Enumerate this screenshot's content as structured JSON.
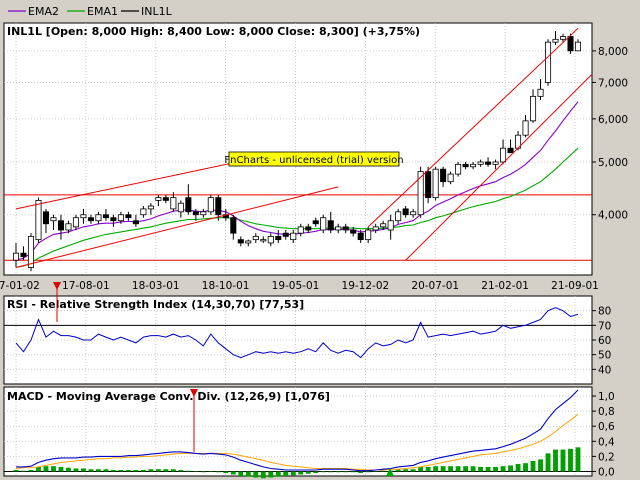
{
  "legend": [
    {
      "label": "EMA2",
      "color": "#8800cc"
    },
    {
      "label": "EMA1",
      "color": "#00aa00"
    },
    {
      "label": "INL1L",
      "color": "#000000"
    }
  ],
  "price_header": "INL1L [Open: 8,000  High: 8,400  Low: 8,000  Close: 8,300] (+3,75%)",
  "watermark": "FnCharts - unlicensed (trial) version",
  "rsi_header": "RSI - Relative Strength Index (14,30,70) [77,53]",
  "macd_header": "MACD - Moving Average Conv. Div. (12,26,9) [1,076]",
  "x_tick_labels": [
    "17-01-02",
    "17-08-01",
    "18-03-01",
    "18-10-01",
    "19-05-01",
    "19-12-02",
    "20-07-01",
    "21-02-01",
    "21-09-01"
  ],
  "colors": {
    "candle_up": "#ffffff",
    "candle_down": "#000000",
    "ema2": "#8800cc",
    "ema1": "#00aa00",
    "trendline": "#ee0000",
    "rsi_line": "#0000cc",
    "macd_line": "#0000cc",
    "signal_line": "#ffa500",
    "histogram": "#00a000",
    "arrow_down": "#dd0000",
    "arrow_up": "#00aa00"
  },
  "chart_data": [
    {
      "type": "candlestick",
      "scale": "log",
      "ylim": [
        3.1,
        9.0
      ],
      "yticks": [
        {
          "v": 8.0,
          "label": "8,000"
        },
        {
          "v": 7.0,
          "label": "7,000"
        },
        {
          "v": 6.0,
          "label": "6,000"
        },
        {
          "v": 5.0,
          "label": "5,000"
        },
        {
          "v": 4.0,
          "label": "4,000"
        }
      ],
      "candles": [
        {
          "o": 3.3,
          "h": 3.55,
          "l": 3.2,
          "c": 3.4
        },
        {
          "o": 3.4,
          "h": 3.5,
          "l": 3.3,
          "c": 3.35
        },
        {
          "o": 3.2,
          "h": 3.7,
          "l": 3.15,
          "c": 3.65
        },
        {
          "o": 3.6,
          "h": 4.3,
          "l": 3.55,
          "c": 4.25
        },
        {
          "o": 4.05,
          "h": 4.1,
          "l": 3.7,
          "c": 3.85
        },
        {
          "o": 3.9,
          "h": 4.0,
          "l": 3.75,
          "c": 3.95
        },
        {
          "o": 3.9,
          "h": 4.0,
          "l": 3.6,
          "c": 3.75
        },
        {
          "o": 3.75,
          "h": 3.9,
          "l": 3.7,
          "c": 3.85
        },
        {
          "o": 3.8,
          "h": 4.0,
          "l": 3.75,
          "c": 3.95
        },
        {
          "o": 3.95,
          "h": 4.1,
          "l": 3.85,
          "c": 4.0
        },
        {
          "o": 3.95,
          "h": 4.0,
          "l": 3.85,
          "c": 3.9
        },
        {
          "o": 3.9,
          "h": 4.05,
          "l": 3.85,
          "c": 4.0
        },
        {
          "o": 4.0,
          "h": 4.1,
          "l": 3.9,
          "c": 3.95
        },
        {
          "o": 3.95,
          "h": 4.0,
          "l": 3.8,
          "c": 3.9
        },
        {
          "o": 3.9,
          "h": 4.05,
          "l": 3.85,
          "c": 4.0
        },
        {
          "o": 4.0,
          "h": 4.05,
          "l": 3.9,
          "c": 3.95
        },
        {
          "o": 3.9,
          "h": 4.0,
          "l": 3.8,
          "c": 3.85
        },
        {
          "o": 4.0,
          "h": 4.15,
          "l": 3.95,
          "c": 4.1
        },
        {
          "o": 4.1,
          "h": 4.2,
          "l": 4.0,
          "c": 4.15
        },
        {
          "o": 4.25,
          "h": 4.35,
          "l": 4.15,
          "c": 4.3
        },
        {
          "o": 4.3,
          "h": 4.35,
          "l": 4.2,
          "c": 4.25
        },
        {
          "o": 4.1,
          "h": 4.4,
          "l": 4.05,
          "c": 4.3
        },
        {
          "o": 4.05,
          "h": 4.25,
          "l": 3.95,
          "c": 4.2
        },
        {
          "o": 4.3,
          "h": 4.55,
          "l": 4.0,
          "c": 4.05
        },
        {
          "o": 4.05,
          "h": 4.1,
          "l": 3.9,
          "c": 4.0
        },
        {
          "o": 4.0,
          "h": 4.1,
          "l": 3.95,
          "c": 4.05
        },
        {
          "o": 4.05,
          "h": 4.35,
          "l": 4.0,
          "c": 4.3
        },
        {
          "o": 4.3,
          "h": 4.35,
          "l": 3.9,
          "c": 4.0
        },
        {
          "o": 4.0,
          "h": 4.1,
          "l": 3.9,
          "c": 3.95
        },
        {
          "o": 3.95,
          "h": 4.0,
          "l": 3.6,
          "c": 3.7
        },
        {
          "o": 3.6,
          "h": 3.65,
          "l": 3.5,
          "c": 3.55
        },
        {
          "o": 3.55,
          "h": 3.6,
          "l": 3.5,
          "c": 3.58
        },
        {
          "o": 3.6,
          "h": 3.7,
          "l": 3.55,
          "c": 3.65
        },
        {
          "o": 3.58,
          "h": 3.65,
          "l": 3.55,
          "c": 3.6
        },
        {
          "o": 3.55,
          "h": 3.7,
          "l": 3.5,
          "c": 3.65
        },
        {
          "o": 3.65,
          "h": 3.75,
          "l": 3.55,
          "c": 3.6
        },
        {
          "o": 3.7,
          "h": 3.75,
          "l": 3.6,
          "c": 3.65
        },
        {
          "o": 3.6,
          "h": 3.75,
          "l": 3.55,
          "c": 3.7
        },
        {
          "o": 3.7,
          "h": 3.85,
          "l": 3.65,
          "c": 3.8
        },
        {
          "o": 3.8,
          "h": 3.85,
          "l": 3.7,
          "c": 3.75
        },
        {
          "o": 3.9,
          "h": 3.95,
          "l": 3.8,
          "c": 3.85
        },
        {
          "o": 3.75,
          "h": 4.0,
          "l": 3.7,
          "c": 3.95
        },
        {
          "o": 3.9,
          "h": 4.05,
          "l": 3.7,
          "c": 3.75
        },
        {
          "o": 3.75,
          "h": 3.85,
          "l": 3.7,
          "c": 3.8
        },
        {
          "o": 3.8,
          "h": 3.85,
          "l": 3.7,
          "c": 3.75
        },
        {
          "o": 3.75,
          "h": 3.8,
          "l": 3.65,
          "c": 3.7
        },
        {
          "o": 3.7,
          "h": 3.75,
          "l": 3.55,
          "c": 3.6
        },
        {
          "o": 3.6,
          "h": 3.8,
          "l": 3.55,
          "c": 3.75
        },
        {
          "o": 3.75,
          "h": 3.85,
          "l": 3.7,
          "c": 3.8
        },
        {
          "o": 3.8,
          "h": 3.9,
          "l": 3.75,
          "c": 3.85
        },
        {
          "o": 3.75,
          "h": 4.0,
          "l": 3.6,
          "c": 3.9
        },
        {
          "o": 3.9,
          "h": 4.1,
          "l": 3.85,
          "c": 4.05
        },
        {
          "o": 4.1,
          "h": 4.15,
          "l": 3.95,
          "c": 4.0
        },
        {
          "o": 4.0,
          "h": 4.1,
          "l": 3.95,
          "c": 4.05
        },
        {
          "o": 4.0,
          "h": 4.9,
          "l": 3.95,
          "c": 4.8
        },
        {
          "o": 4.8,
          "h": 4.9,
          "l": 4.2,
          "c": 4.3
        },
        {
          "o": 4.3,
          "h": 4.9,
          "l": 4.25,
          "c": 4.85
        },
        {
          "o": 4.85,
          "h": 4.9,
          "l": 4.5,
          "c": 4.6
        },
        {
          "o": 4.6,
          "h": 4.8,
          "l": 4.55,
          "c": 4.75
        },
        {
          "o": 4.75,
          "h": 5.0,
          "l": 4.7,
          "c": 4.95
        },
        {
          "o": 4.95,
          "h": 5.0,
          "l": 4.85,
          "c": 4.9
        },
        {
          "o": 4.9,
          "h": 5.0,
          "l": 4.85,
          "c": 4.95
        },
        {
          "o": 4.95,
          "h": 5.05,
          "l": 4.9,
          "c": 5.0
        },
        {
          "o": 5.0,
          "h": 5.1,
          "l": 4.9,
          "c": 4.95
        },
        {
          "o": 4.95,
          "h": 5.05,
          "l": 4.85,
          "c": 5.0
        },
        {
          "o": 5.0,
          "h": 5.5,
          "l": 4.95,
          "c": 5.3
        },
        {
          "o": 5.3,
          "h": 5.5,
          "l": 5.2,
          "c": 5.2
        },
        {
          "o": 5.3,
          "h": 5.7,
          "l": 5.25,
          "c": 5.6
        },
        {
          "o": 5.6,
          "h": 6.1,
          "l": 5.55,
          "c": 5.95
        },
        {
          "o": 5.95,
          "h": 6.8,
          "l": 5.9,
          "c": 6.6
        },
        {
          "o": 6.6,
          "h": 7.1,
          "l": 6.5,
          "c": 6.8
        },
        {
          "o": 7.0,
          "h": 8.4,
          "l": 6.9,
          "c": 8.3
        },
        {
          "o": 8.3,
          "h": 8.7,
          "l": 8.2,
          "c": 8.4
        },
        {
          "o": 8.4,
          "h": 8.6,
          "l": 8.3,
          "c": 8.5
        },
        {
          "o": 8.5,
          "h": 8.6,
          "l": 7.9,
          "c": 8.0
        },
        {
          "o": 8.0,
          "h": 8.4,
          "l": 8.0,
          "c": 8.3
        }
      ],
      "ema2": [
        3.3,
        3.33,
        3.4,
        3.55,
        3.62,
        3.68,
        3.7,
        3.72,
        3.76,
        3.8,
        3.82,
        3.85,
        3.86,
        3.86,
        3.88,
        3.89,
        3.88,
        3.9,
        3.93,
        3.98,
        4.02,
        4.06,
        4.08,
        4.08,
        4.06,
        4.05,
        4.08,
        4.07,
        4.05,
        3.98,
        3.89,
        3.82,
        3.77,
        3.73,
        3.71,
        3.69,
        3.68,
        3.68,
        3.7,
        3.71,
        3.73,
        3.76,
        3.76,
        3.76,
        3.76,
        3.75,
        3.72,
        3.73,
        3.74,
        3.76,
        3.79,
        3.84,
        3.87,
        3.9,
        4.0,
        4.06,
        4.16,
        4.22,
        4.28,
        4.35,
        4.41,
        4.47,
        4.52,
        4.56,
        4.6,
        4.68,
        4.75,
        4.84,
        4.95,
        5.1,
        5.25,
        5.48,
        5.7,
        5.95,
        6.2,
        6.45
      ],
      "ema1": [
        3.2,
        3.22,
        3.26,
        3.33,
        3.38,
        3.43,
        3.47,
        3.51,
        3.55,
        3.59,
        3.62,
        3.65,
        3.68,
        3.7,
        3.72,
        3.74,
        3.76,
        3.78,
        3.8,
        3.83,
        3.86,
        3.88,
        3.9,
        3.92,
        3.92,
        3.93,
        3.94,
        3.95,
        3.95,
        3.94,
        3.91,
        3.88,
        3.85,
        3.83,
        3.81,
        3.79,
        3.78,
        3.77,
        3.77,
        3.77,
        3.77,
        3.78,
        3.78,
        3.78,
        3.78,
        3.78,
        3.77,
        3.77,
        3.77,
        3.78,
        3.79,
        3.8,
        3.82,
        3.83,
        3.87,
        3.9,
        3.95,
        3.98,
        4.02,
        4.06,
        4.1,
        4.14,
        4.17,
        4.2,
        4.23,
        4.28,
        4.32,
        4.38,
        4.44,
        4.52,
        4.6,
        4.72,
        4.85,
        5.0,
        5.15,
        5.3
      ],
      "hlines": [
        4.35,
        3.3
      ],
      "trendlines": [
        {
          "a": 0,
          "va": 4.1,
          "b": 31,
          "vb": 5.05
        },
        {
          "a": 0,
          "va": 3.2,
          "b": 43,
          "vb": 4.5
        },
        {
          "a": 47,
          "va": 3.8,
          "b": 75,
          "vb": 8.8
        },
        {
          "a": 52,
          "va": 3.3,
          "b": 80,
          "vb": 8.0
        }
      ]
    },
    {
      "type": "line",
      "name": "RSI",
      "ylim": [
        30,
        90
      ],
      "yticks": [
        80,
        70,
        60,
        50,
        40
      ],
      "hlines": [
        70,
        30
      ],
      "values": [
        58,
        52,
        60,
        74,
        62,
        66,
        63,
        63,
        62,
        60,
        60,
        64,
        62,
        60,
        62,
        60,
        58,
        62,
        63,
        63,
        62,
        64,
        62,
        63,
        60,
        56,
        64,
        58,
        54,
        50,
        48,
        50,
        52,
        51,
        52,
        51,
        52,
        51,
        52,
        54,
        52,
        58,
        53,
        51,
        53,
        52,
        48,
        54,
        58,
        56,
        57,
        60,
        58,
        60,
        72,
        62,
        63,
        64,
        63,
        64,
        65,
        66,
        64,
        65,
        66,
        70,
        68,
        69,
        70,
        72,
        74,
        80,
        82,
        80,
        76,
        77.53
      ]
    },
    {
      "type": "bar+line",
      "name": "MACD",
      "ylim": [
        -0.06,
        1.12
      ],
      "yticks": [
        {
          "v": 1.0,
          "label": "1,0"
        },
        {
          "v": 0.8,
          "label": "0,8"
        },
        {
          "v": 0.6,
          "label": "0,6"
        },
        {
          "v": 0.4,
          "label": "0,4"
        },
        {
          "v": 0.2,
          "label": "0,2"
        },
        {
          "v": 0.0,
          "label": "0,0"
        }
      ],
      "macd": [
        0.06,
        0.06,
        0.07,
        0.12,
        0.15,
        0.17,
        0.18,
        0.18,
        0.18,
        0.19,
        0.19,
        0.2,
        0.2,
        0.2,
        0.2,
        0.21,
        0.21,
        0.22,
        0.23,
        0.24,
        0.25,
        0.26,
        0.26,
        0.25,
        0.24,
        0.23,
        0.24,
        0.23,
        0.22,
        0.19,
        0.15,
        0.12,
        0.09,
        0.06,
        0.04,
        0.03,
        0.02,
        0.02,
        0.02,
        0.02,
        0.02,
        0.03,
        0.03,
        0.03,
        0.03,
        0.02,
        0.01,
        0.01,
        0.02,
        0.03,
        0.04,
        0.06,
        0.07,
        0.08,
        0.12,
        0.14,
        0.17,
        0.19,
        0.21,
        0.23,
        0.25,
        0.27,
        0.28,
        0.29,
        0.3,
        0.33,
        0.36,
        0.4,
        0.44,
        0.5,
        0.56,
        0.7,
        0.82,
        0.9,
        0.98,
        1.08
      ],
      "signal": [
        0.04,
        0.05,
        0.05,
        0.06,
        0.08,
        0.1,
        0.12,
        0.13,
        0.14,
        0.15,
        0.16,
        0.17,
        0.17,
        0.18,
        0.18,
        0.19,
        0.19,
        0.2,
        0.2,
        0.21,
        0.22,
        0.23,
        0.24,
        0.24,
        0.24,
        0.24,
        0.24,
        0.24,
        0.24,
        0.23,
        0.21,
        0.19,
        0.17,
        0.15,
        0.12,
        0.1,
        0.08,
        0.07,
        0.06,
        0.05,
        0.04,
        0.04,
        0.04,
        0.04,
        0.04,
        0.03,
        0.03,
        0.02,
        0.02,
        0.02,
        0.03,
        0.03,
        0.04,
        0.05,
        0.06,
        0.08,
        0.1,
        0.12,
        0.14,
        0.16,
        0.18,
        0.2,
        0.22,
        0.23,
        0.24,
        0.26,
        0.28,
        0.3,
        0.33,
        0.36,
        0.4,
        0.46,
        0.53,
        0.61,
        0.68,
        0.76
      ],
      "histogram": [
        0.02,
        0.01,
        0.02,
        0.06,
        0.07,
        0.07,
        0.06,
        0.05,
        0.04,
        0.04,
        0.03,
        0.03,
        0.03,
        0.02,
        0.02,
        0.02,
        0.02,
        0.02,
        0.03,
        0.03,
        0.03,
        0.03,
        0.02,
        0.01,
        0.0,
        -0.01,
        0.0,
        -0.01,
        -0.02,
        -0.04,
        -0.06,
        -0.07,
        -0.08,
        -0.09,
        -0.08,
        -0.07,
        -0.06,
        -0.05,
        -0.04,
        -0.03,
        -0.02,
        -0.01,
        -0.01,
        -0.01,
        -0.01,
        -0.01,
        -0.02,
        -0.01,
        0.0,
        0.01,
        0.01,
        0.03,
        0.03,
        0.03,
        0.06,
        0.06,
        0.07,
        0.07,
        0.07,
        0.07,
        0.07,
        0.07,
        0.06,
        0.06,
        0.06,
        0.07,
        0.08,
        0.1,
        0.11,
        0.14,
        0.16,
        0.24,
        0.29,
        0.29,
        0.3,
        0.32
      ]
    }
  ]
}
